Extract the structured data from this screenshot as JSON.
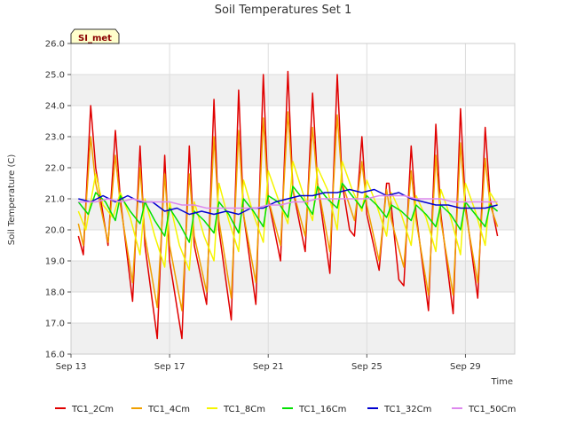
{
  "chart_data": {
    "type": "line",
    "title": "Soil Temperatures Set 1",
    "xlabel": "Time",
    "ylabel": "Soil Temperature (C)",
    "badge": "SI_met",
    "ylim": [
      16.0,
      26.0
    ],
    "yticks": [
      "16.0",
      "17.0",
      "18.0",
      "19.0",
      "20.0",
      "21.0",
      "22.0",
      "23.0",
      "24.0",
      "25.0",
      "26.0"
    ],
    "xlim": [
      "Sep 13",
      "Oct 1"
    ],
    "xticks": [
      "Sep 13",
      "Sep 17",
      "Sep 21",
      "Sep 25",
      "Sep 29"
    ],
    "x_unit": "day of September",
    "grid": true,
    "legend_position": "bottom",
    "series": [
      {
        "name": "TC1_2Cm",
        "color": "#e00000",
        "x": [
          13.3,
          13.5,
          13.8,
          14.0,
          14.5,
          14.8,
          15.0,
          15.5,
          15.8,
          16.0,
          16.5,
          16.8,
          17.0,
          17.5,
          17.8,
          18.0,
          18.5,
          18.8,
          19.0,
          19.5,
          19.8,
          20.0,
          20.5,
          20.8,
          21.0,
          21.5,
          21.8,
          22.0,
          22.5,
          22.8,
          23.0,
          23.5,
          23.8,
          24.0,
          24.3,
          24.5,
          24.8,
          25.0,
          25.5,
          25.8,
          25.9,
          26.3,
          26.5,
          26.8,
          27.0,
          27.5,
          27.8,
          28.0,
          28.5,
          28.8,
          29.0,
          29.5,
          29.8,
          30.0,
          30.3
        ],
        "y": [
          19.8,
          19.2,
          24.0,
          22.0,
          19.5,
          23.2,
          21.0,
          17.7,
          22.7,
          19.5,
          16.5,
          22.4,
          19.0,
          16.5,
          22.7,
          19.5,
          17.6,
          24.2,
          20.0,
          17.1,
          24.5,
          20.5,
          17.6,
          25.0,
          21.0,
          19.0,
          25.1,
          21.3,
          19.3,
          24.4,
          21.5,
          18.6,
          25.0,
          21.5,
          20.0,
          19.8,
          23.0,
          20.5,
          18.7,
          21.5,
          21.5,
          18.4,
          18.2,
          22.7,
          20.5,
          17.4,
          23.4,
          20.5,
          17.3,
          23.9,
          20.8,
          17.8,
          23.3,
          21.0,
          19.8
        ]
      },
      {
        "name": "TC1_4Cm",
        "color": "#f0a000",
        "x": [
          13.3,
          13.5,
          13.8,
          14.0,
          14.5,
          14.8,
          15.0,
          15.5,
          15.8,
          16.0,
          16.5,
          16.8,
          17.0,
          17.5,
          17.8,
          18.0,
          18.5,
          18.8,
          19.0,
          19.5,
          19.8,
          20.0,
          20.5,
          20.8,
          21.0,
          21.5,
          21.8,
          22.0,
          22.5,
          22.8,
          23.0,
          23.5,
          23.8,
          24.0,
          24.5,
          24.8,
          25.0,
          25.5,
          25.8,
          26.0,
          26.5,
          26.8,
          27.0,
          27.5,
          27.8,
          28.0,
          28.5,
          28.8,
          29.0,
          29.5,
          29.8,
          30.0,
          30.3
        ],
        "y": [
          20.2,
          19.5,
          23.0,
          21.5,
          19.6,
          22.4,
          20.8,
          18.3,
          22.0,
          19.8,
          17.5,
          21.8,
          19.5,
          17.4,
          21.8,
          19.8,
          18.0,
          23.0,
          20.3,
          17.8,
          23.2,
          20.5,
          18.3,
          23.6,
          21.0,
          19.5,
          23.8,
          21.3,
          19.8,
          23.3,
          21.5,
          19.3,
          23.7,
          21.5,
          20.3,
          22.2,
          20.8,
          19.0,
          21.3,
          20.3,
          18.8,
          21.9,
          20.3,
          17.9,
          22.4,
          20.3,
          17.9,
          22.8,
          20.6,
          18.3,
          22.3,
          20.8,
          20.1
        ]
      },
      {
        "name": "TC1_8Cm",
        "color": "#f5f500",
        "x": [
          13.3,
          13.6,
          14.0,
          14.3,
          14.7,
          15.0,
          15.4,
          15.8,
          16.0,
          16.4,
          16.8,
          17.0,
          17.4,
          17.8,
          18.0,
          18.4,
          18.8,
          19.0,
          19.4,
          19.8,
          20.0,
          20.4,
          20.8,
          21.0,
          21.4,
          21.8,
          22.0,
          22.4,
          22.8,
          23.0,
          23.4,
          23.8,
          24.0,
          24.4,
          24.8,
          25.0,
          25.4,
          25.8,
          26.0,
          26.4,
          26.8,
          27.0,
          27.4,
          27.8,
          28.0,
          28.4,
          28.8,
          29.0,
          29.4,
          29.8,
          30.0,
          30.3
        ],
        "y": [
          20.6,
          20.0,
          21.8,
          20.8,
          20.4,
          21.2,
          20.4,
          19.2,
          21.0,
          19.8,
          18.8,
          20.9,
          19.5,
          18.7,
          20.9,
          19.8,
          19.0,
          21.5,
          20.3,
          19.3,
          21.6,
          20.5,
          19.6,
          21.9,
          21.0,
          20.2,
          22.2,
          21.2,
          20.3,
          22.0,
          21.3,
          20.0,
          22.2,
          21.3,
          20.6,
          21.6,
          20.8,
          19.8,
          21.2,
          20.5,
          19.5,
          21.1,
          20.4,
          19.3,
          21.3,
          20.4,
          19.2,
          21.5,
          20.6,
          19.5,
          21.2,
          20.8
        ]
      },
      {
        "name": "TC1_16Cm",
        "color": "#00e000",
        "x": [
          13.3,
          13.7,
          14.0,
          14.4,
          14.8,
          15.0,
          15.4,
          15.8,
          16.0,
          16.4,
          16.8,
          17.0,
          17.4,
          17.8,
          18.0,
          18.4,
          18.8,
          19.0,
          19.4,
          19.8,
          20.0,
          20.4,
          20.8,
          21.0,
          21.4,
          21.8,
          22.0,
          22.4,
          22.8,
          23.0,
          23.4,
          23.8,
          24.0,
          24.4,
          24.8,
          25.0,
          25.4,
          25.8,
          26.0,
          26.4,
          26.8,
          27.0,
          27.4,
          27.8,
          28.0,
          28.4,
          28.8,
          29.0,
          29.4,
          29.8,
          30.0,
          30.3
        ],
        "y": [
          20.9,
          20.5,
          21.2,
          20.9,
          20.3,
          21.1,
          20.6,
          20.2,
          20.9,
          20.3,
          19.8,
          20.7,
          20.2,
          19.6,
          20.6,
          20.3,
          19.9,
          20.9,
          20.5,
          19.9,
          21.0,
          20.6,
          20.1,
          21.1,
          20.9,
          20.4,
          21.4,
          21.0,
          20.5,
          21.4,
          21.0,
          20.7,
          21.5,
          21.1,
          20.7,
          21.1,
          20.8,
          20.4,
          20.8,
          20.6,
          20.3,
          20.8,
          20.5,
          20.1,
          20.8,
          20.5,
          20.0,
          20.9,
          20.5,
          20.1,
          20.8,
          20.6
        ]
      },
      {
        "name": "TC1_32Cm",
        "color": "#0000d0",
        "x": [
          13.3,
          13.8,
          14.3,
          14.8,
          15.3,
          15.8,
          16.3,
          16.8,
          17.3,
          17.8,
          18.3,
          18.8,
          19.3,
          19.8,
          20.3,
          20.8,
          21.3,
          21.8,
          22.3,
          22.8,
          23.3,
          23.8,
          24.3,
          24.8,
          25.3,
          25.8,
          26.3,
          26.8,
          27.3,
          27.8,
          28.3,
          28.8,
          29.3,
          29.8,
          30.3
        ],
        "y": [
          21.0,
          20.9,
          21.1,
          20.9,
          21.1,
          20.9,
          20.9,
          20.6,
          20.7,
          20.5,
          20.6,
          20.5,
          20.6,
          20.5,
          20.7,
          20.7,
          20.9,
          21.0,
          21.1,
          21.1,
          21.2,
          21.2,
          21.3,
          21.2,
          21.3,
          21.1,
          21.2,
          21.0,
          20.9,
          20.8,
          20.8,
          20.7,
          20.7,
          20.7,
          20.8
        ]
      },
      {
        "name": "TC1_50Cm",
        "color": "#dd88ee",
        "x": [
          13.3,
          14.0,
          14.5,
          15.0,
          15.5,
          16.0,
          16.5,
          17.0,
          17.5,
          18.0,
          18.5,
          19.0,
          19.5,
          20.0,
          20.5,
          21.0,
          21.5,
          22.0,
          22.5,
          23.0,
          23.5,
          24.0,
          24.5,
          25.0,
          25.5,
          26.0,
          26.5,
          27.0,
          27.5,
          28.0,
          28.5,
          29.0,
          29.5,
          30.0,
          30.3
        ],
        "y": [
          20.9,
          20.9,
          21.0,
          20.9,
          21.0,
          20.9,
          20.9,
          20.9,
          20.8,
          20.8,
          20.7,
          20.7,
          20.7,
          20.7,
          20.7,
          20.8,
          20.8,
          20.9,
          20.9,
          21.0,
          21.0,
          21.0,
          21.0,
          21.0,
          21.1,
          21.1,
          21.1,
          21.0,
          21.0,
          21.0,
          20.9,
          20.9,
          20.9,
          20.9,
          20.9
        ]
      }
    ]
  }
}
